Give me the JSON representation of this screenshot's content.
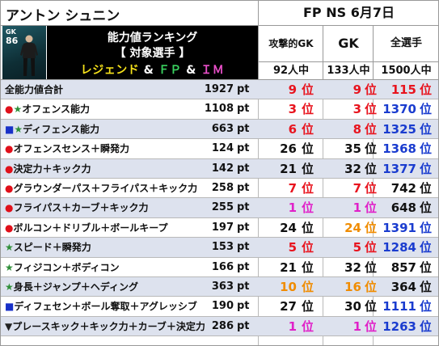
{
  "header": {
    "player_name": "アントン シュニン",
    "fp_date": "FP NS 6月7日"
  },
  "card": {
    "position": "GK",
    "rating": "86"
  },
  "title": {
    "line1": "能力値ランキング",
    "line2": "【 対象選手 】",
    "line3_a": "レジェンド",
    "line3_amp1": " & ",
    "line3_b": "ＦＰ",
    "line3_amp2": " & ",
    "line3_c": "ＩＭ"
  },
  "columns": [
    {
      "label": "攻撃的GK",
      "count": "92人中"
    },
    {
      "label": "GK",
      "count": "133人中"
    },
    {
      "label": "全選手",
      "count": "1500人中"
    }
  ],
  "unit_label": "pt",
  "rank_suffix": "位",
  "colors": {
    "red": "#e8141e",
    "orange": "#f08c00",
    "magenta": "#e020c8",
    "blue": "#1a3ccf",
    "black": "#111111"
  },
  "rows": [
    {
      "mark": "",
      "label": "全能力値合計",
      "value": "1927",
      "r1": "9",
      "c1": "red",
      "r2": "9",
      "c2": "red",
      "r3": "115",
      "c3": "red"
    },
    {
      "mark": "●★",
      "label": "オフェンス能力",
      "value": "1108",
      "r1": "3",
      "c1": "red",
      "r2": "3",
      "c2": "red",
      "r3": "1370",
      "c3": "blue"
    },
    {
      "mark": "■★",
      "label": "ディフェンス能力",
      "value": "663",
      "r1": "6",
      "c1": "red",
      "r2": "8",
      "c2": "red",
      "r3": "1325",
      "c3": "blue"
    },
    {
      "mark": "●",
      "label": "オフェンスセンス＋瞬発力",
      "value": "124",
      "r1": "26",
      "c1": "black",
      "r2": "35",
      "c2": "black",
      "r3": "1368",
      "c3": "blue"
    },
    {
      "mark": "●",
      "label": "決定力＋キック力",
      "value": "142",
      "r1": "21",
      "c1": "black",
      "r2": "32",
      "c2": "black",
      "r3": "1377",
      "c3": "blue"
    },
    {
      "mark": "●",
      "label": "グラウンダーパス＋フライパス＋キック力",
      "value": "258",
      "r1": "7",
      "c1": "red",
      "r2": "7",
      "c2": "red",
      "r3": "742",
      "c3": "black"
    },
    {
      "mark": "●",
      "label": "フライパス＋カーブ＋キック力",
      "value": "255",
      "r1": "1",
      "c1": "magenta",
      "r2": "1",
      "c2": "magenta",
      "r3": "648",
      "c3": "black"
    },
    {
      "mark": "●",
      "label": "ボルコン＋ドリブル＋ボールキープ",
      "value": "197",
      "r1": "24",
      "c1": "black",
      "r2": "24",
      "c2": "orange",
      "r3": "1391",
      "c3": "blue"
    },
    {
      "mark": "★",
      "label": "スピード＋瞬発力",
      "value": "153",
      "r1": "5",
      "c1": "red",
      "r2": "5",
      "c2": "red",
      "r3": "1284",
      "c3": "blue"
    },
    {
      "mark": "★",
      "label": "フィジコン＋ボディコン",
      "value": "166",
      "r1": "21",
      "c1": "black",
      "r2": "32",
      "c2": "black",
      "r3": "857",
      "c3": "black"
    },
    {
      "mark": "★",
      "label": "身長＋ジャンプ＋ヘディング",
      "value": "363",
      "r1": "10",
      "c1": "orange",
      "r2": "16",
      "c2": "orange",
      "r3": "364",
      "c3": "black"
    },
    {
      "mark": "■",
      "label": "ディフェセン＋ボール奪取＋アグレッシブ",
      "value": "190",
      "r1": "27",
      "c1": "black",
      "r2": "30",
      "c2": "black",
      "r3": "1111",
      "c3": "blue"
    },
    {
      "mark": "▼",
      "label": "プレースキック＋キック力＋カーブ＋決定力",
      "value": "286",
      "r1": "1",
      "c1": "magenta",
      "r2": "1",
      "c2": "magenta",
      "r3": "1263",
      "c3": "blue"
    }
  ]
}
